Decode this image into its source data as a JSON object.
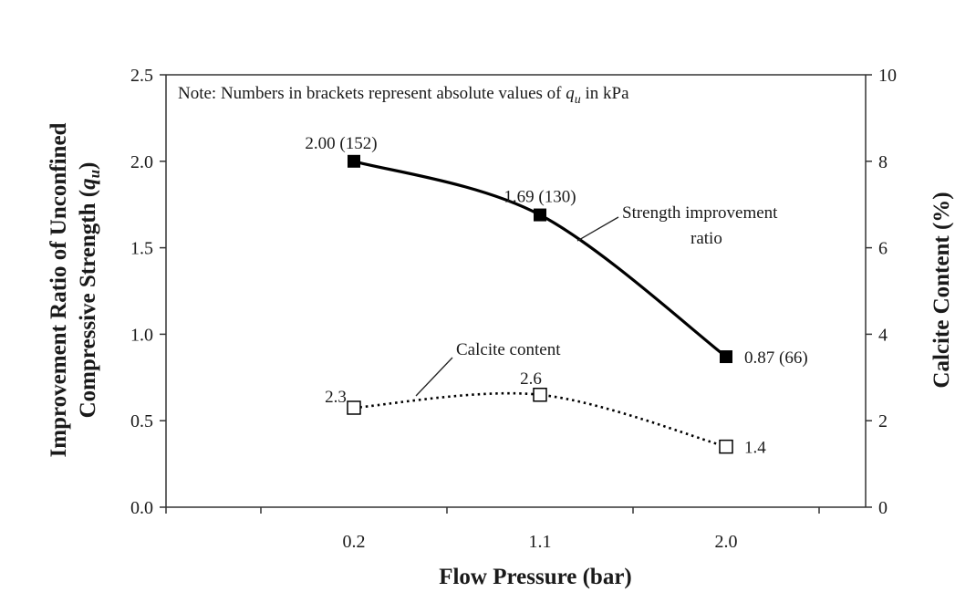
{
  "chart_data": {
    "type": "line",
    "note": {
      "prefix": "Note: Numbers in brackets represent absolute values of ",
      "symbol": "q",
      "subscript": "u",
      "suffix": " in kPa"
    },
    "categories": [
      "0.2",
      "1.1",
      "2.0"
    ],
    "xlabel": "Flow Pressure (bar)",
    "ylabel_left_line1": "Improvement Ratio of Unconfined",
    "ylabel_left_line2": "Compressive Strength (",
    "ylabel_left_symbol": "q",
    "ylabel_left_sub": "u",
    "ylabel_left_close": ")",
    "ylabel_right": "Calcite Content (%)",
    "ylim_left": [
      0,
      2.5
    ],
    "yticks_left": [
      "0.0",
      "0.5",
      "1.0",
      "1.5",
      "2.0",
      "2.5"
    ],
    "ylim_right": [
      0,
      10
    ],
    "yticks_right": [
      "0",
      "2",
      "4",
      "6",
      "8",
      "10"
    ],
    "series": [
      {
        "name": "Strength improvement ratio",
        "axis": "left",
        "values": [
          2.0,
          1.69,
          0.87
        ],
        "labels": [
          "2.00 (152)",
          "1.69 (130)",
          "0.87 (66)"
        ],
        "color": "#000000",
        "marker": "filled-square",
        "line": "solid"
      },
      {
        "name": "Calcite content",
        "axis": "right",
        "values": [
          2.3,
          2.6,
          1.4
        ],
        "labels": [
          "2.3",
          "2.6",
          "1.4"
        ],
        "color": "#000000",
        "marker": "open-square",
        "line": "dotted"
      }
    ],
    "annotations": {
      "strength_line1": "Strength improvement",
      "strength_line2": "ratio",
      "calcite": "Calcite content"
    },
    "grid": false
  }
}
